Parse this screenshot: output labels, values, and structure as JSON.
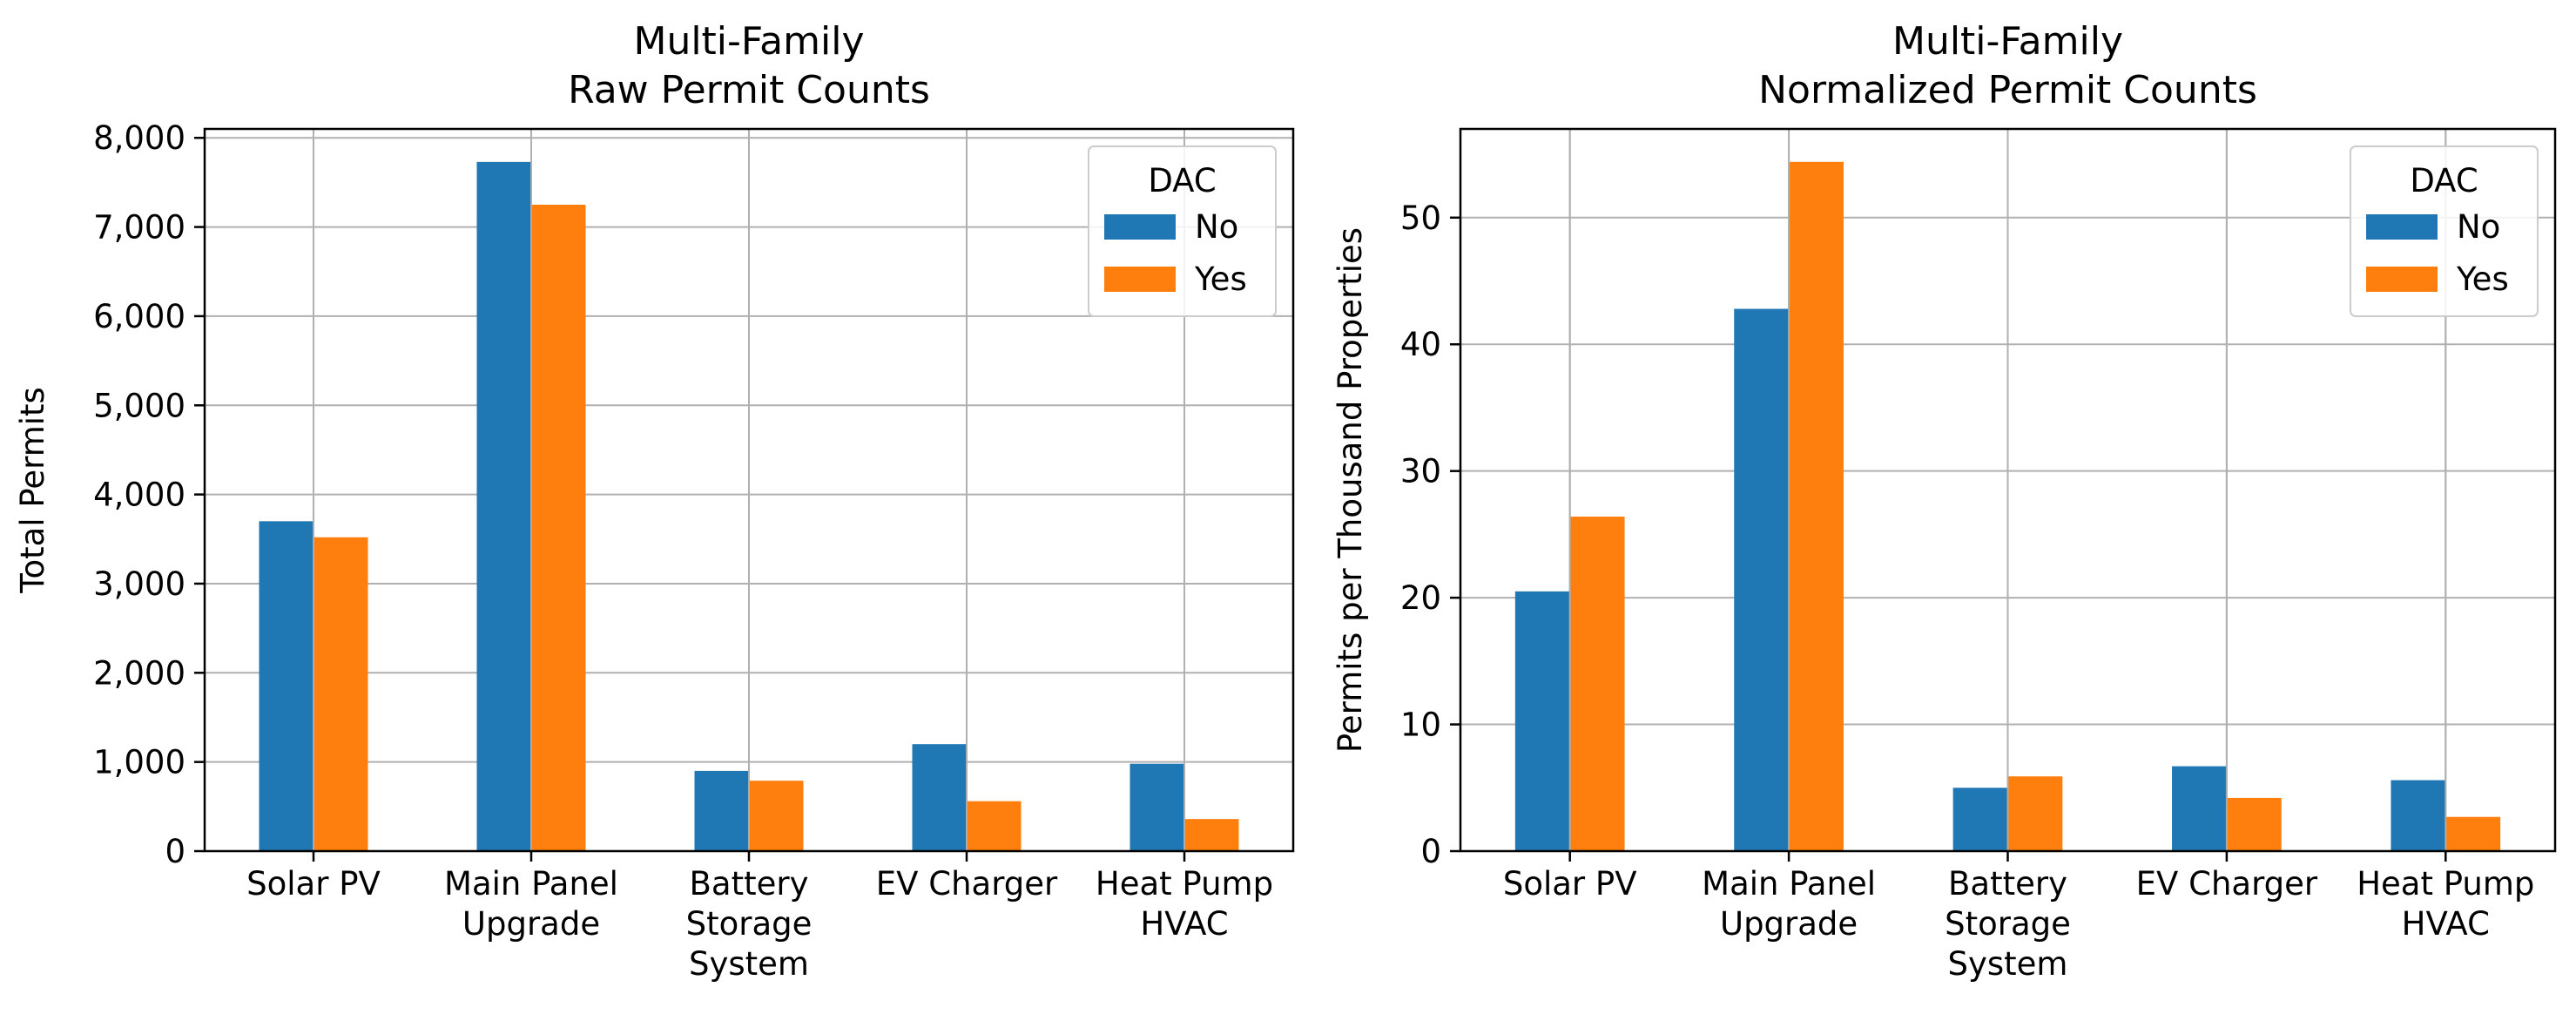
{
  "chart_data": [
    {
      "type": "bar",
      "title": "Multi-Family\nRaw Permit Counts",
      "xlabel": "",
      "ylabel": "Total Permits",
      "categories": [
        "Solar PV",
        "Main Panel\nUpgrade",
        "Battery\nStorage\nSystem",
        "EV Charger",
        "Heat Pump\nHVAC"
      ],
      "series": [
        {
          "name": "No",
          "color": "#1f77b4",
          "values": [
            3700,
            7730,
            900,
            1200,
            980
          ]
        },
        {
          "name": "Yes",
          "color": "#ff7f0e",
          "values": [
            3520,
            7250,
            790,
            560,
            360
          ]
        }
      ],
      "ylim": [
        0,
        8100
      ],
      "yticks": [
        0,
        1000,
        2000,
        3000,
        4000,
        5000,
        6000,
        7000,
        8000
      ],
      "ytick_labels": [
        "0",
        "1,000",
        "2,000",
        "3,000",
        "4,000",
        "5,000",
        "6,000",
        "7,000",
        "8,000"
      ],
      "grid": true,
      "legend": {
        "title": "DAC",
        "placement": "top-right"
      }
    },
    {
      "type": "bar",
      "title": "Multi-Family\nNormalized Permit Counts",
      "xlabel": "",
      "ylabel": "Permits per Thousand Properties",
      "categories": [
        "Solar PV",
        "Main Panel\nUpgrade",
        "Battery\nStorage\nSystem",
        "EV Charger",
        "Heat Pump\nHVAC"
      ],
      "series": [
        {
          "name": "No",
          "color": "#1f77b4",
          "values": [
            20.5,
            42.8,
            5.0,
            6.7,
            5.6
          ]
        },
        {
          "name": "Yes",
          "color": "#ff7f0e",
          "values": [
            26.4,
            54.4,
            5.9,
            4.2,
            2.7
          ]
        }
      ],
      "ylim": [
        0,
        57
      ],
      "yticks": [
        0,
        10,
        20,
        30,
        40,
        50
      ],
      "ytick_labels": [
        "0",
        "10",
        "20",
        "30",
        "40",
        "50"
      ],
      "grid": true,
      "legend": {
        "title": "DAC",
        "placement": "top-right"
      }
    }
  ]
}
